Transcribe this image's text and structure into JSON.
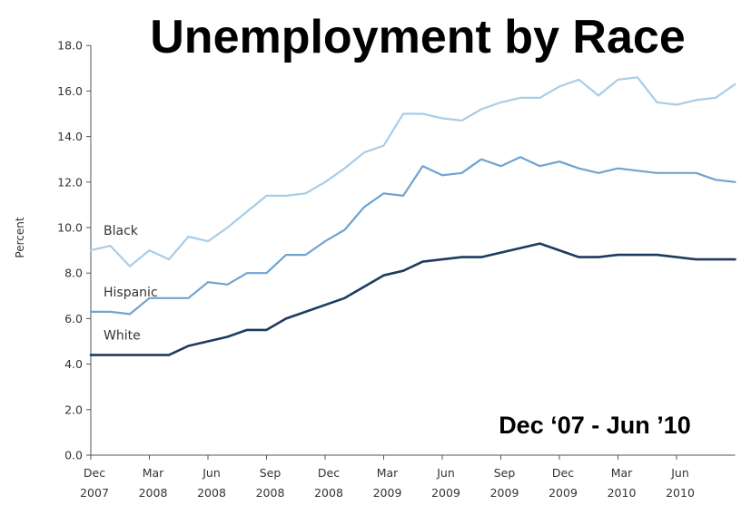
{
  "chart_data": {
    "type": "line",
    "title": "Unemployment by Race",
    "subtitle": "Dec ‘07 - Jun ’10",
    "ylabel": "Percent",
    "xlabel": "",
    "ylim": [
      0,
      18
    ],
    "yticks": [
      "0.0",
      "2.0",
      "4.0",
      "6.0",
      "8.0",
      "10.0",
      "12.0",
      "14.0",
      "16.0",
      "18.0"
    ],
    "xticks": [
      {
        "month": "Dec",
        "year": "2007",
        "index": 0
      },
      {
        "month": "Mar",
        "year": "2008",
        "index": 3
      },
      {
        "month": "Jun",
        "year": "2008",
        "index": 6
      },
      {
        "month": "Sep",
        "year": "2008",
        "index": 9
      },
      {
        "month": "Dec",
        "year": "2008",
        "index": 12
      },
      {
        "month": "Mar",
        "year": "2009",
        "index": 15
      },
      {
        "month": "Jun",
        "year": "2009",
        "index": 18
      },
      {
        "month": "Sep",
        "year": "2009",
        "index": 21
      },
      {
        "month": "Dec",
        "year": "2009",
        "index": 24
      },
      {
        "month": "Mar",
        "year": "2010",
        "index": 27
      },
      {
        "month": "Jun",
        "year": "2010",
        "index": 30
      }
    ],
    "x": [
      "Dec 2007",
      "Jan 2008",
      "Feb 2008",
      "Mar 2008",
      "Apr 2008",
      "May 2008",
      "Jun 2008",
      "Jul 2008",
      "Aug 2008",
      "Sep 2008",
      "Oct 2008",
      "Nov 2008",
      "Dec 2008",
      "Jan 2009",
      "Feb 2009",
      "Mar 2009",
      "Apr 2009",
      "May 2009",
      "Jun 2009",
      "Jul 2009",
      "Aug 2009",
      "Sep 2009",
      "Oct 2009",
      "Nov 2009",
      "Dec 2009",
      "Jan 2010",
      "Feb 2010",
      "Mar 2010",
      "Apr 2010",
      "May 2010",
      "Jun 2010",
      "Jul 2010",
      "Aug 2010",
      "Sep 2010"
    ],
    "grid": false,
    "series": [
      {
        "name": "Black",
        "color": "#a9cde6",
        "values": [
          9.0,
          9.2,
          8.3,
          9.0,
          8.6,
          9.6,
          9.4,
          10.0,
          10.7,
          11.4,
          11.4,
          11.5,
          12.0,
          12.6,
          13.3,
          13.6,
          15.0,
          15.0,
          14.8,
          14.7,
          15.2,
          15.5,
          15.7,
          15.7,
          16.2,
          16.5,
          15.8,
          16.5,
          16.6,
          15.5,
          15.4,
          15.6,
          15.7,
          16.3
        ]
      },
      {
        "name": "Hispanic",
        "color": "#6fa3d0",
        "values": [
          6.3,
          6.3,
          6.2,
          6.9,
          6.9,
          6.9,
          7.6,
          7.5,
          8.0,
          8.0,
          8.8,
          8.8,
          9.4,
          9.9,
          10.9,
          11.5,
          11.4,
          12.7,
          12.3,
          12.4,
          13.0,
          12.7,
          13.1,
          12.7,
          12.9,
          12.6,
          12.4,
          12.6,
          12.5,
          12.4,
          12.4,
          12.4,
          12.1,
          12.0
        ]
      },
      {
        "name": "White",
        "color": "#1d3a5f",
        "values": [
          4.4,
          4.4,
          4.4,
          4.4,
          4.4,
          4.8,
          5.0,
          5.2,
          5.5,
          5.5,
          6.0,
          6.3,
          6.6,
          6.9,
          7.4,
          7.9,
          8.1,
          8.5,
          8.6,
          8.7,
          8.7,
          8.9,
          9.1,
          9.3,
          9.0,
          8.7,
          8.7,
          8.8,
          8.8,
          8.8,
          8.7,
          8.6,
          8.6,
          8.6
        ]
      }
    ]
  }
}
